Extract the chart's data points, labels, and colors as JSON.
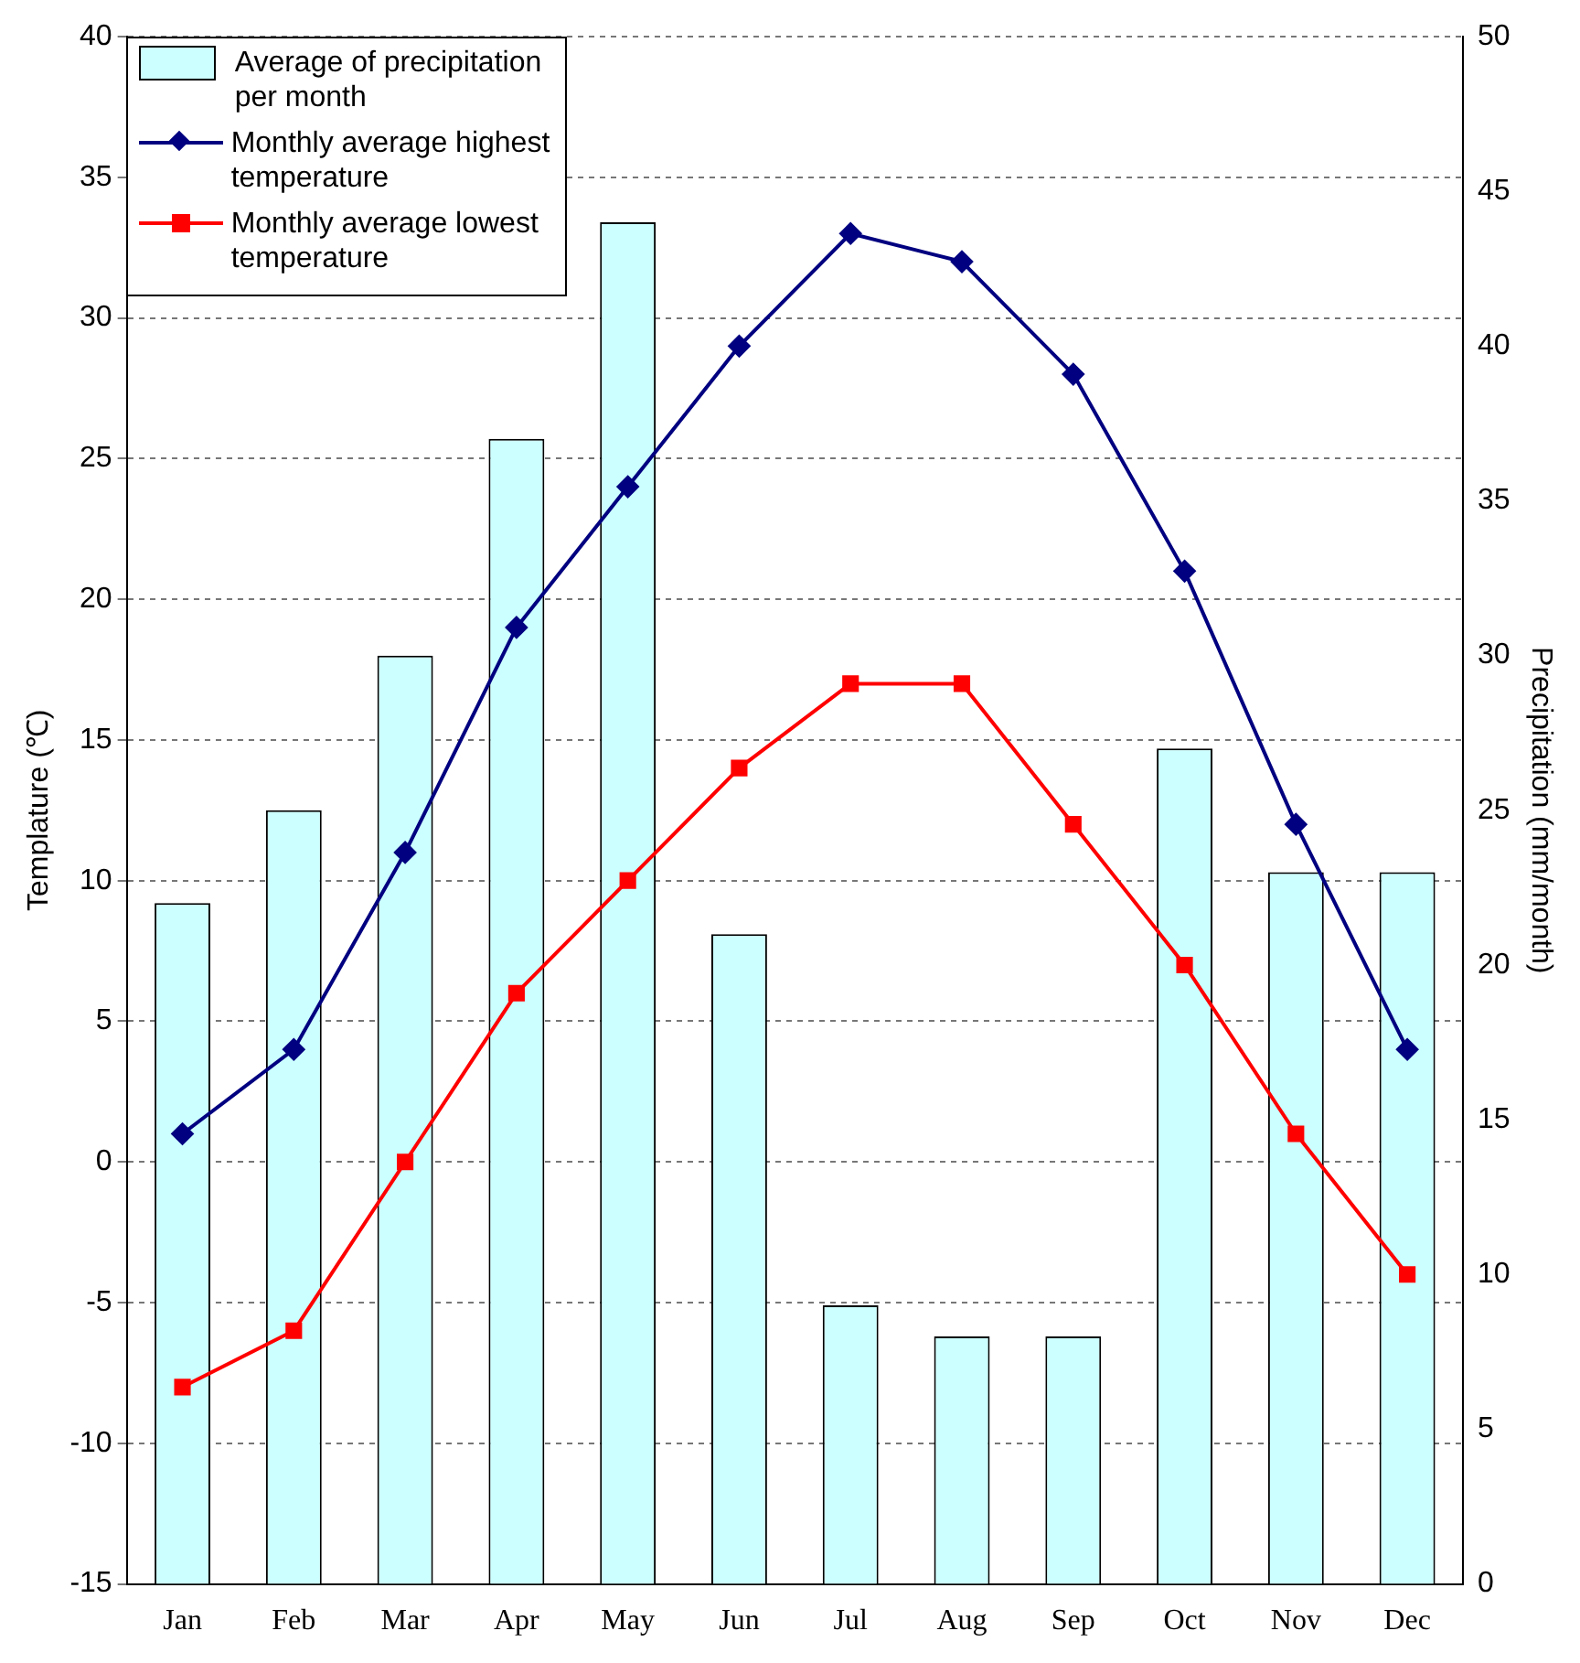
{
  "chart_data": {
    "type": "bar",
    "categories": [
      "Jan",
      "Feb",
      "Mar",
      "Apr",
      "May",
      "Jun",
      "Jul",
      "Aug",
      "Sep",
      "Oct",
      "Nov",
      "Dec"
    ],
    "ylabel": "Templature (℃)",
    "y2label": "Precipitation (mm/month)",
    "ylim": [
      -15,
      40
    ],
    "yticks": [
      -15,
      -10,
      -5,
      0,
      5,
      10,
      15,
      20,
      25,
      30,
      35,
      40
    ],
    "y2lim": [
      0,
      50
    ],
    "y2ticks": [
      0,
      5,
      10,
      15,
      20,
      25,
      30,
      35,
      40,
      45,
      50
    ],
    "grid": "y",
    "legend": "top left",
    "series": [
      {
        "name": "Average of precipitation per month",
        "axis": "y2",
        "color": "#ccffff",
        "values": [
          22,
          25,
          30,
          37,
          44,
          21,
          9,
          8,
          8,
          27,
          23,
          23
        ]
      },
      {
        "name": "Monthly average highest temperature",
        "type": "line",
        "color": "#000080",
        "marker": "diamond",
        "values": [
          1,
          4,
          11,
          19,
          24,
          29,
          33,
          32,
          28,
          21,
          12,
          4
        ]
      },
      {
        "name": "Monthly average lowest temperature",
        "type": "line",
        "color": "#ff0000",
        "marker": "square",
        "values": [
          -8,
          -6,
          0,
          6,
          10,
          14,
          17,
          17,
          12,
          7,
          1,
          -4
        ]
      }
    ]
  }
}
